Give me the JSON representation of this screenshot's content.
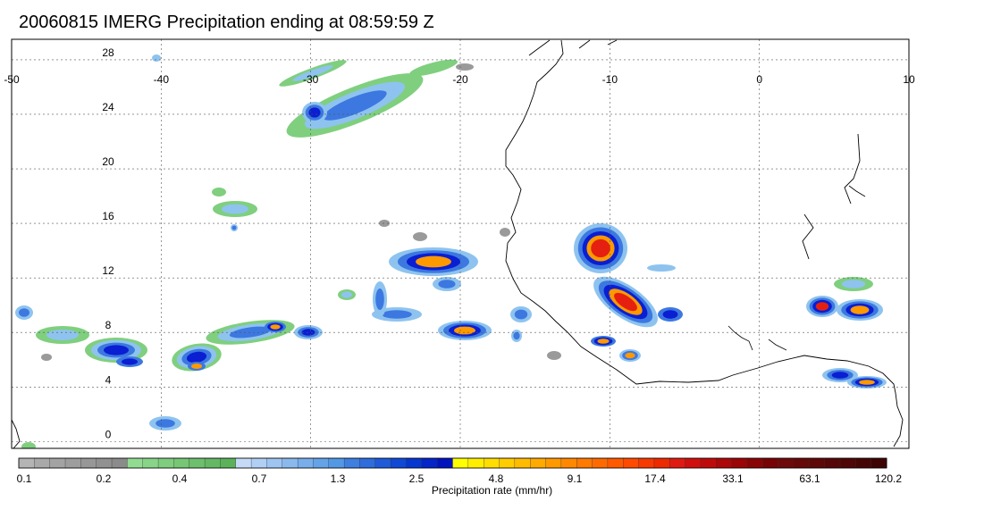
{
  "title": "20060815 IMERG Precipitation ending at 08:59:59 Z",
  "map": {
    "lon_ticks": [
      "-50",
      "-40",
      "-30",
      "-20",
      "-10",
      "0",
      "10"
    ],
    "lat_ticks": [
      "28",
      "24",
      "20",
      "16",
      "12",
      "8",
      "4",
      "0"
    ],
    "lon_range": [
      -50,
      10
    ],
    "lat_range": [
      -0.5,
      29.5
    ],
    "grid": "dotted",
    "colors": {
      "grey": "#9a9a9a",
      "green": "#7fcf7f",
      "light_blue": "#8ec3ef",
      "blue": "#3c78e0",
      "dark_blue": "#0a1ed2",
      "yellow": "#ffe600",
      "orange": "#ff9900",
      "red": "#e52010",
      "dark_red": "#8a0d0d",
      "coast": "#000000"
    }
  },
  "colorbar": {
    "label": "Precipitation rate (mm/hr)",
    "tick_labels": [
      "0.1",
      "0.2",
      "0.4",
      "0.7",
      "1.3",
      "2.5",
      "4.8",
      "9.1",
      "17.4",
      "33.1",
      "63.1",
      "120.2"
    ],
    "colors": [
      "#b4b4b4",
      "#a9a9a9",
      "#a3a3a3",
      "#9d9d9d",
      "#979797",
      "#919191",
      "#8b8b8b",
      "#92dc92",
      "#88d488",
      "#7fcd7f",
      "#76c676",
      "#6dbf6d",
      "#64b864",
      "#5bb25b",
      "#c4daf7",
      "#b1cff4",
      "#9ec4f1",
      "#8bb9ee",
      "#78aeeb",
      "#65a3e8",
      "#5298e5",
      "#3f7fe0",
      "#2f6ddd",
      "#1f5bd9",
      "#1049d5",
      "#0537d1",
      "#0425c8",
      "#0213be",
      "#ffff00",
      "#ffee00",
      "#ffdd00",
      "#ffcc00",
      "#ffbb00",
      "#ffaa00",
      "#ff9900",
      "#ff8800",
      "#ff7a00",
      "#ff6a00",
      "#ff5a00",
      "#ff4a00",
      "#f73a00",
      "#ee2a00",
      "#e01a10",
      "#d0100e",
      "#bf0a0b",
      "#ad0709",
      "#9b0507",
      "#890406",
      "#770305",
      "#6e0a0a",
      "#660909",
      "#5e0808",
      "#560707",
      "#4e0606",
      "#460505",
      "#3e0404"
    ]
  }
}
